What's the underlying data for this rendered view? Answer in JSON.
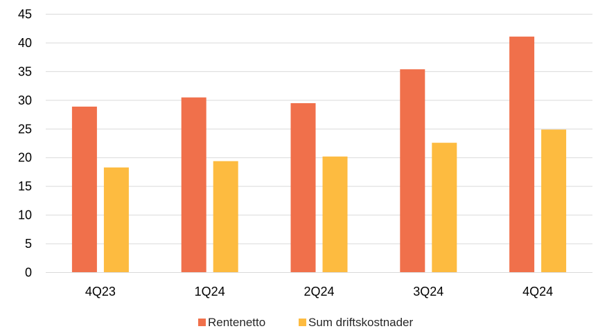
{
  "chart_data": {
    "type": "bar",
    "title": "",
    "xlabel": "",
    "ylabel": "",
    "categories": [
      "4Q23",
      "1Q24",
      "2Q24",
      "3Q24",
      "4Q24"
    ],
    "series": [
      {
        "name": "Rentenetto",
        "color": "#f0704b",
        "values": [
          28.9,
          30.5,
          29.5,
          35.4,
          41.1
        ]
      },
      {
        "name": "Sum driftskostnader",
        "color": "#fdbb40",
        "values": [
          18.3,
          19.4,
          20.2,
          22.6,
          24.9
        ]
      }
    ],
    "ylim": [
      0,
      45
    ],
    "yticks": [
      0,
      5,
      10,
      15,
      20,
      25,
      30,
      35,
      40,
      45
    ],
    "grid": true,
    "legend_position": "bottom-center"
  }
}
